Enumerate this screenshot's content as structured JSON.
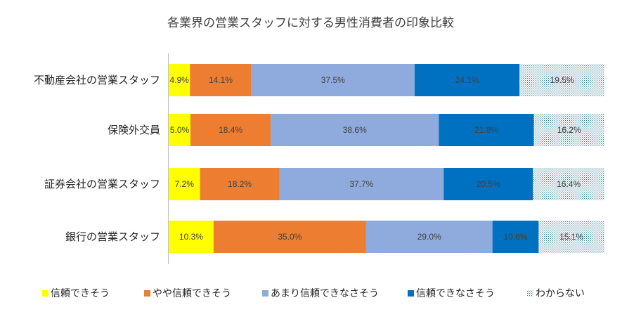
{
  "chart_data": {
    "type": "bar",
    "orientation": "horizontal",
    "stacked": "percent",
    "title": "各業界の営業スタッフに対する男性消費者の印象比較",
    "categories": [
      "不動産会社の営業スタッフ",
      "保険外交員",
      "証券会社の営業スタッフ",
      "銀行の営業スタッフ"
    ],
    "series": [
      {
        "name": "信頼できそう",
        "color": "#ffff00",
        "values": [
          4.9,
          5.0,
          7.2,
          10.3
        ],
        "labels": [
          "4.9%",
          "5.0%",
          "7.2%",
          "10.3%"
        ]
      },
      {
        "name": "やや信頼できそう",
        "color": "#ed7d31",
        "values": [
          14.1,
          18.4,
          18.2,
          35.0
        ],
        "labels": [
          "14.1%",
          "18.4%",
          "18.2%",
          "35.0%"
        ]
      },
      {
        "name": "あまり信頼できなさそう",
        "color": "#8faadc",
        "values": [
          37.5,
          38.6,
          37.7,
          29.0
        ],
        "labels": [
          "37.5%",
          "38.6%",
          "37.7%",
          "29.0%"
        ]
      },
      {
        "name": "信頼できなさそう",
        "color": "#0070c0",
        "values": [
          24.1,
          21.8,
          20.5,
          10.6
        ],
        "labels": [
          "24.1%",
          "21.8%",
          "20.5%",
          "10.6%"
        ]
      },
      {
        "name": "わからない",
        "color": "dotted",
        "values": [
          19.5,
          16.2,
          16.4,
          15.1
        ],
        "labels": [
          "19.5%",
          "16.2%",
          "16.4%",
          "15.1%"
        ]
      }
    ],
    "xlim": [
      0,
      100
    ],
    "legend": "bottom",
    "grid": false
  }
}
